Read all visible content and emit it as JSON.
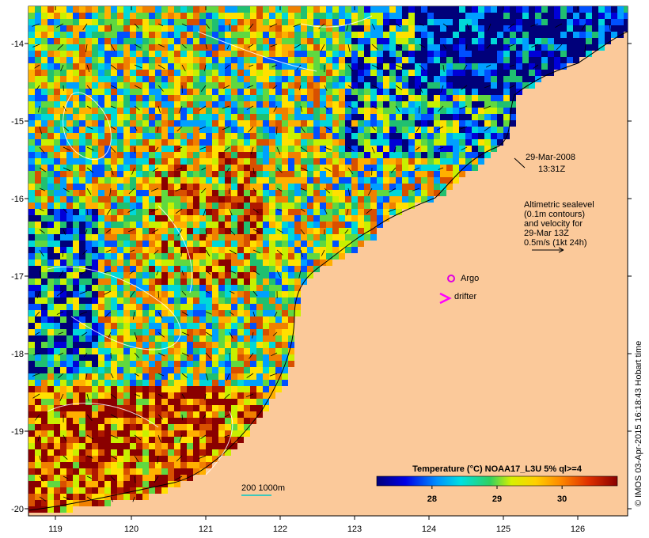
{
  "map": {
    "date": "29-Mar-2008",
    "time": "13:31Z",
    "lon_range": [
      118.6,
      126.7
    ],
    "lat_range": [
      -20.1,
      -13.6
    ],
    "lon_ticks": [
      "119",
      "120",
      "121",
      "122",
      "123",
      "124",
      "125",
      "126"
    ],
    "lat_ticks": [
      "-14",
      "-15",
      "-16",
      "-17",
      "-18",
      "-19",
      "-20"
    ],
    "altimetry_lines": [
      "Altimetric sealevel",
      "(0.1m contours)",
      "and velocity for",
      "29-Mar 13Z",
      "0.5m/s (1kt 24h)"
    ],
    "argo_label": "Argo",
    "drifter_label": "drifter",
    "bathy_label": "200  1000m",
    "colorbar": {
      "title": "Temperature (°C) NOAA17_L3U 5% ql>=4",
      "ticks": [
        "28",
        "29",
        "30"
      ],
      "tick_values": [
        28,
        29,
        30
      ],
      "range": [
        27.15,
        30.85
      ]
    },
    "credit": "© IMOS 03-Apr-2015 16:18:43 Hobart time",
    "colors": {
      "land": "#fbc99a",
      "argo": "#e000e0",
      "drifter": "#ff00ff",
      "bathy_line": "#00c8c8"
    }
  }
}
